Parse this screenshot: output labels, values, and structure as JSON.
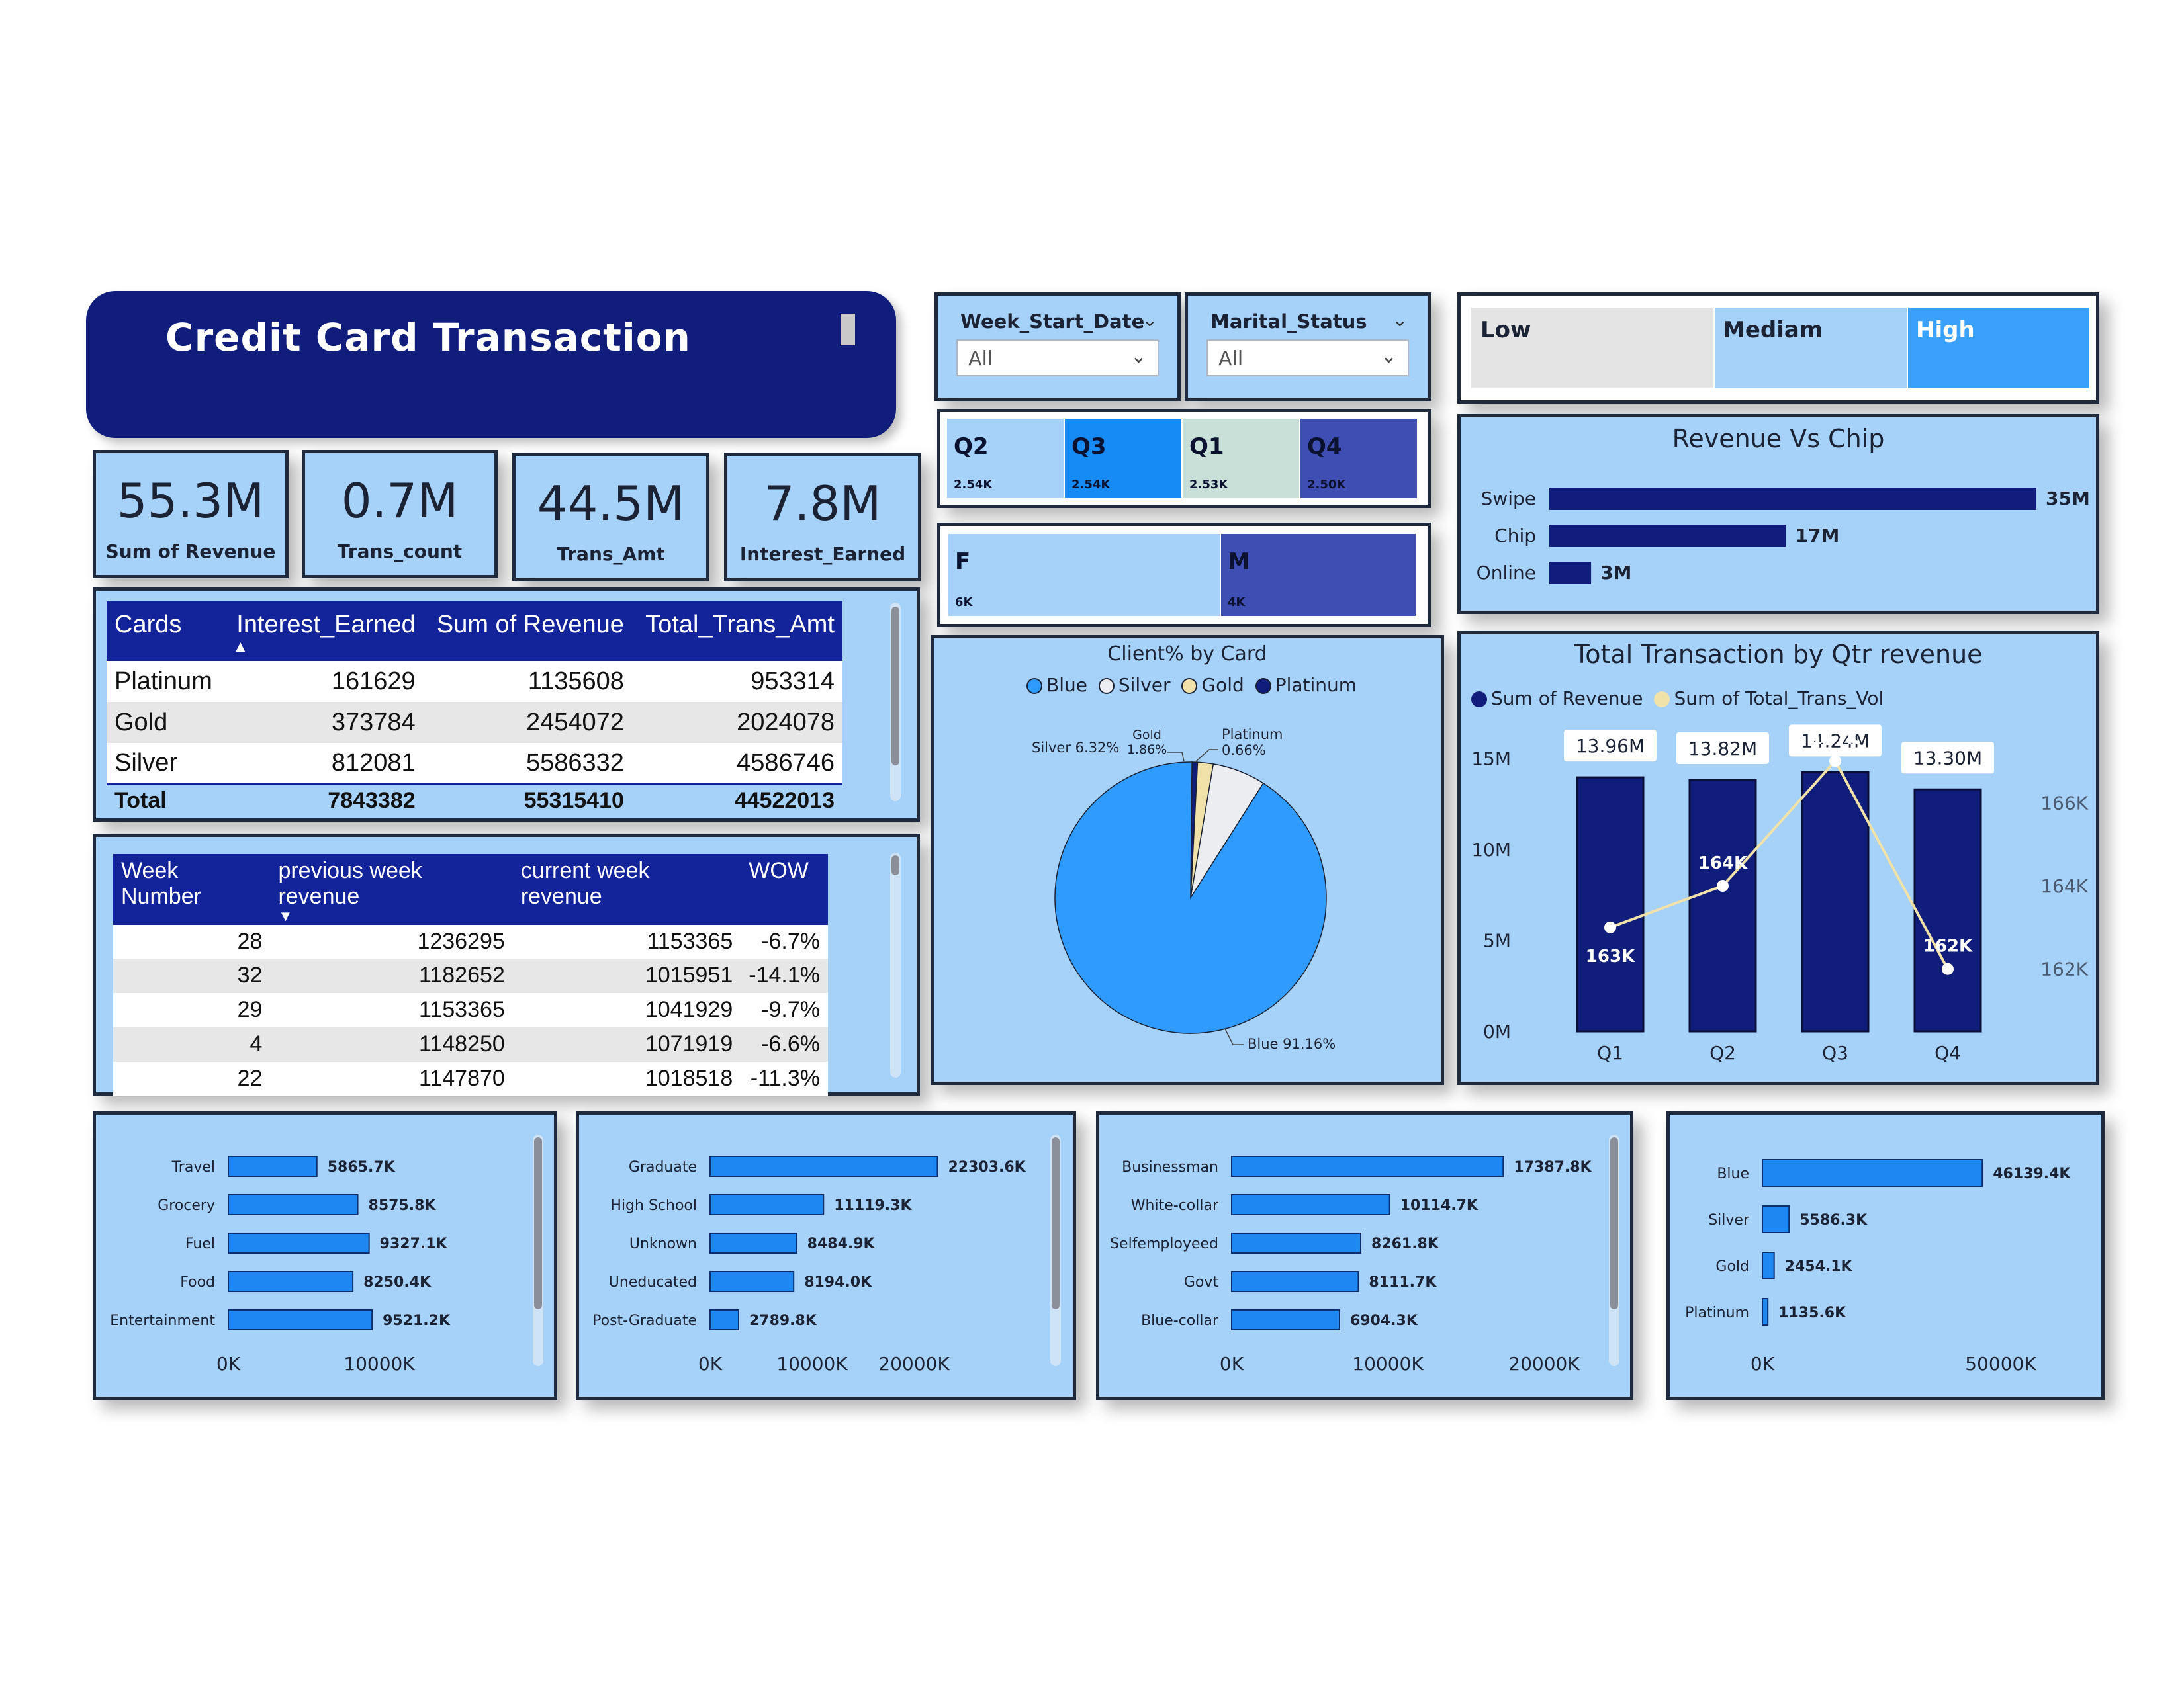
{
  "title": "Credit Card Transaction",
  "kpis": [
    {
      "value": "55.3M",
      "label": "Sum of Revenue"
    },
    {
      "value": "0.7M",
      "label": "Trans_count"
    },
    {
      "value": "44.5M",
      "label": "Trans_Amt"
    },
    {
      "value": "7.8M",
      "label": "Interest_Earned"
    }
  ],
  "slicers": {
    "week": {
      "title": "Week_Start_Date",
      "value": "All"
    },
    "marital": {
      "title": "Marital_Status",
      "value": "All"
    }
  },
  "levels": {
    "low": "Low",
    "medium": "Mediam",
    "high": "High"
  },
  "quarter_tiles": [
    {
      "label": "Q2",
      "value": "2.54K",
      "color": "#a6d2fa"
    },
    {
      "label": "Q3",
      "value": "2.54K",
      "color": "#178bf5"
    },
    {
      "label": "Q1",
      "value": "2.53K",
      "color": "#c9e0d8"
    },
    {
      "label": "Q4",
      "value": "2.50K",
      "color": "#3f4eb2"
    }
  ],
  "gender_tiles": [
    {
      "label": "F",
      "value": "6K",
      "color": "#a6d2fa"
    },
    {
      "label": "M",
      "value": "4K",
      "color": "#3f4eb2"
    }
  ],
  "cards_table": {
    "headers": [
      "Cards",
      "Interest_Earned",
      "Sum of Revenue",
      "Total_Trans_Amt"
    ],
    "rows": [
      [
        "Platinum",
        "161629",
        "1135608",
        "953314"
      ],
      [
        "Gold",
        "373784",
        "2454072",
        "2024078"
      ],
      [
        "Silver",
        "812081",
        "5586332",
        "4586746"
      ]
    ],
    "total": [
      "Total",
      "7843382",
      "55315410",
      "44522013"
    ]
  },
  "week_table": {
    "headers": [
      "Week Number",
      "previous week revenue",
      "current week revenue",
      "WOW"
    ],
    "rows": [
      [
        "28",
        "1236295",
        "1153365",
        "-6.7%"
      ],
      [
        "32",
        "1182652",
        "1015951",
        "-14.1%"
      ],
      [
        "29",
        "1153365",
        "1041929",
        "-9.7%"
      ],
      [
        "4",
        "1148250",
        "1071919",
        "-6.6%"
      ],
      [
        "22",
        "1147870",
        "1018518",
        "-11.3%"
      ]
    ]
  },
  "chart_data": [
    {
      "type": "bar",
      "title": "Revenue Vs Chip",
      "orientation": "horizontal",
      "categories": [
        "Swipe",
        "Chip",
        "Online"
      ],
      "values": [
        35,
        17,
        3
      ],
      "value_labels": [
        "35M",
        "17M",
        "3M"
      ],
      "color": "#101d7a"
    },
    {
      "type": "pie",
      "title": "Client% by Card",
      "legend": [
        {
          "name": "Blue",
          "color": "#2f9bff"
        },
        {
          "name": "Silver",
          "color": "#ebedf0"
        },
        {
          "name": "Gold",
          "color": "#f0e2a8"
        },
        {
          "name": "Platinum",
          "color": "#101d7a"
        }
      ],
      "slices": [
        {
          "name": "Blue",
          "value": 91.16,
          "label": "Blue 91.16%",
          "color": "#2f9bff"
        },
        {
          "name": "Silver",
          "value": 6.32,
          "label": "Silver 6.32%",
          "color": "#ebedf0"
        },
        {
          "name": "Gold",
          "value": 1.86,
          "label": "1.86%",
          "name_label": "Gold",
          "color": "#f0e2a8"
        },
        {
          "name": "Platinum",
          "value": 0.66,
          "label": "0.66%",
          "name_label": "Platinum",
          "color": "#101d7a"
        }
      ]
    },
    {
      "type": "bar",
      "title": "Total Transaction by Qtr revenue",
      "legend": [
        {
          "name": "Sum of Revenue",
          "color": "#101d7a"
        },
        {
          "name": "Sum of Total_Trans_Vol",
          "color": "#f0e2a8"
        }
      ],
      "categories": [
        "Q1",
        "Q2",
        "Q3",
        "Q4"
      ],
      "series": [
        {
          "name": "Sum of Revenue",
          "values": [
            13.96,
            13.82,
            14.24,
            13.3
          ],
          "labels": [
            "13.96M",
            "13.82M",
            "14.24M",
            "13.30M"
          ],
          "color": "#101d7a"
        },
        {
          "name": "Sum of Total_Trans_Vol",
          "type": "line",
          "values": [
            163,
            164,
            167,
            162
          ],
          "labels": [
            "163K",
            "164K",
            "167K",
            "162K"
          ],
          "color": "#f0e2a8"
        }
      ],
      "y_ticks": [
        "15M",
        "10M",
        "5M",
        "0M"
      ],
      "y_ticks_values": [
        15,
        10,
        5,
        0
      ],
      "ylim": [
        0,
        16
      ],
      "y2_ticks": [
        "166K",
        "164K",
        "162K"
      ],
      "y2_ticks_values": [
        166,
        164,
        162
      ],
      "y2lim": [
        160.5,
        167.5
      ]
    },
    {
      "type": "bar",
      "orientation": "horizontal",
      "categories": [
        "Travel",
        "Grocery",
        "Fuel",
        "Food",
        "Entertainment"
      ],
      "values": [
        5865.7,
        8575.8,
        9327.1,
        8250.4,
        9521.2
      ],
      "value_labels": [
        "5865.7K",
        "8575.8K",
        "9327.1K",
        "8250.4K",
        "9521.2K"
      ],
      "x_ticks": [
        "0K",
        "10000K"
      ],
      "x_ticks_values": [
        0,
        10000
      ],
      "xlim": [
        0,
        10000
      ],
      "color": "#1e87f2"
    },
    {
      "type": "bar",
      "orientation": "horizontal",
      "categories": [
        "Graduate",
        "High School",
        "Unknown",
        "Uneducated",
        "Post-Graduate"
      ],
      "values": [
        22303.6,
        11119.3,
        8484.9,
        8194.0,
        2789.8
      ],
      "value_labels": [
        "22303.6K",
        "11119.3K",
        "8484.9K",
        "8194.0K",
        "2789.8K"
      ],
      "x_ticks": [
        "0K",
        "10000K",
        "20000K"
      ],
      "x_ticks_values": [
        0,
        10000,
        20000
      ],
      "xlim": [
        0,
        20000
      ],
      "color": "#1e87f2"
    },
    {
      "type": "bar",
      "orientation": "horizontal",
      "categories": [
        "Businessman",
        "White-collar",
        "Selfemployeed",
        "Govt",
        "Blue-collar"
      ],
      "values": [
        17387.8,
        10114.7,
        8261.8,
        8111.7,
        6904.3
      ],
      "value_labels": [
        "17387.8K",
        "10114.7K",
        "8261.8K",
        "8111.7K",
        "6904.3K"
      ],
      "x_ticks": [
        "0K",
        "10000K",
        "20000K"
      ],
      "x_ticks_values": [
        0,
        10000,
        20000
      ],
      "xlim": [
        0,
        20000
      ],
      "color": "#1e87f2"
    },
    {
      "type": "bar",
      "orientation": "horizontal",
      "categories": [
        "Blue",
        "Silver",
        "Gold",
        "Platinum"
      ],
      "values": [
        46139.4,
        5586.3,
        2454.1,
        1135.6
      ],
      "value_labels": [
        "46139.4K",
        "5586.3K",
        "2454.1K",
        "1135.6K"
      ],
      "x_ticks": [
        "0K",
        "50000K"
      ],
      "x_ticks_values": [
        0,
        50000
      ],
      "xlim": [
        0,
        50000
      ],
      "color": "#1e87f2"
    }
  ]
}
